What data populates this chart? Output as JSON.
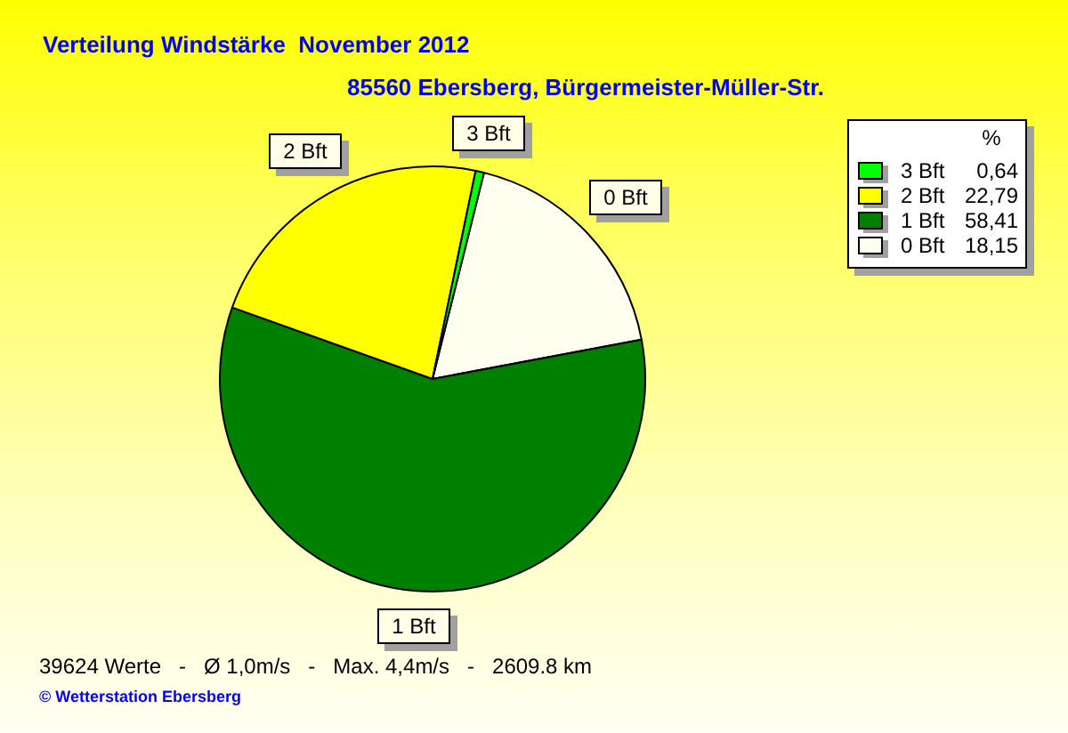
{
  "chart_data": {
    "type": "pie",
    "title": "Verteilung Windstärke  November 2012",
    "subtitle": "85560 Ebersberg, Bürgermeister-Müller-Str.",
    "categories": [
      "0 Bft",
      "1 Bft",
      "2 Bft",
      "3 Bft"
    ],
    "values": [
      18.15,
      58.41,
      22.79,
      0.64
    ],
    "colors": [
      "#fffff0",
      "#008000",
      "#ffff00",
      "#00ff00"
    ],
    "value_labels": [
      "18,15",
      "58,41",
      "22,79",
      "0,64"
    ],
    "legend": "top right",
    "legend_title": "%",
    "annotations": [
      "39624 Werte   -   Ø 1,0m/s   -   Max. 4,4m/s   -   2609.8 km",
      "© Wetterstation Ebersberg"
    ]
  }
}
